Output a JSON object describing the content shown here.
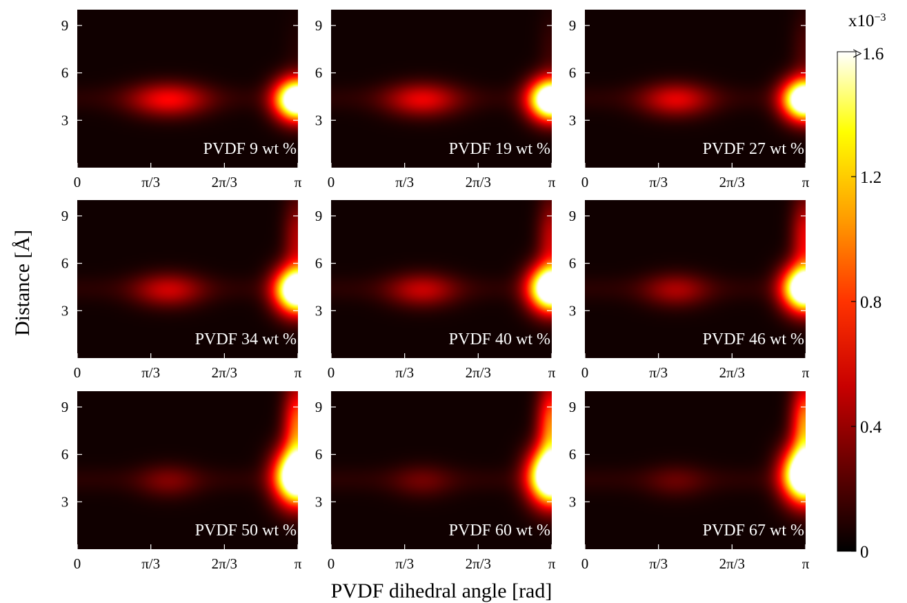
{
  "chart_data": {
    "type": "heatmap",
    "xlabel": "PVDF dihedral angle [rad]",
    "ylabel": "Distance [Å]",
    "x_tick_labels": [
      "0",
      "π/3",
      "2π/3",
      "π"
    ],
    "x_tick_values": [
      0,
      1.0472,
      2.0944,
      3.1416
    ],
    "y_tick_labels": [
      "3",
      "6",
      "9"
    ],
    "y_tick_values": [
      3,
      6,
      9
    ],
    "xlim": [
      0,
      3.1416
    ],
    "ylim": [
      0,
      10
    ],
    "colorbar": {
      "exponent_label": "x10",
      "exponent_power": "−3",
      "max_label": ">1.6",
      "tick_labels": [
        "0",
        "0.4",
        "0.8",
        "1.2"
      ],
      "tick_values": [
        0,
        0.4,
        0.8,
        1.2
      ],
      "range": [
        0,
        1.6
      ],
      "colormap": "hot"
    },
    "panels": [
      {
        "label": "PVDF 9 wt %",
        "gauche_peak": 0.55,
        "gauche_width": 0.38,
        "trans_peak": 2.2,
        "trans_y": 4.3,
        "trans_y_width": 0.9,
        "tail_amp": 0.05,
        "tail_y": 7.0
      },
      {
        "label": "PVDF 19 wt %",
        "gauche_peak": 0.5,
        "gauche_width": 0.36,
        "trans_peak": 2.2,
        "trans_y": 4.3,
        "trans_y_width": 0.9,
        "tail_amp": 0.1,
        "tail_y": 7.2
      },
      {
        "label": "PVDF 27 wt %",
        "gauche_peak": 0.48,
        "gauche_width": 0.34,
        "trans_peak": 2.2,
        "trans_y": 4.3,
        "trans_y_width": 0.9,
        "tail_amp": 0.15,
        "tail_y": 7.3
      },
      {
        "label": "PVDF 34 wt %",
        "gauche_peak": 0.42,
        "gauche_width": 0.34,
        "trans_peak": 2.2,
        "trans_y": 4.3,
        "trans_y_width": 1.0,
        "tail_amp": 0.4,
        "tail_y": 7.5
      },
      {
        "label": "PVDF 40 wt %",
        "gauche_peak": 0.4,
        "gauche_width": 0.34,
        "trans_peak": 2.2,
        "trans_y": 4.4,
        "trans_y_width": 1.0,
        "tail_amp": 0.45,
        "tail_y": 7.5
      },
      {
        "label": "PVDF 46 wt %",
        "gauche_peak": 0.33,
        "gauche_width": 0.32,
        "trans_peak": 2.2,
        "trans_y": 4.4,
        "trans_y_width": 1.0,
        "tail_amp": 0.55,
        "tail_y": 7.6
      },
      {
        "label": "PVDF 50 wt %",
        "gauche_peak": 0.22,
        "gauche_width": 0.3,
        "trans_peak": 2.3,
        "trans_y": 4.6,
        "trans_y_width": 1.2,
        "tail_amp": 0.85,
        "tail_y": 7.8
      },
      {
        "label": "PVDF 60 wt %",
        "gauche_peak": 0.18,
        "gauche_width": 0.3,
        "trans_peak": 2.3,
        "trans_y": 4.6,
        "trans_y_width": 1.2,
        "tail_amp": 0.9,
        "tail_y": 7.8
      },
      {
        "label": "PVDF 67 wt %",
        "gauche_peak": 0.16,
        "gauche_width": 0.3,
        "trans_peak": 2.3,
        "trans_y": 4.7,
        "trans_y_width": 1.2,
        "tail_amp": 0.95,
        "tail_y": 7.9
      }
    ]
  }
}
